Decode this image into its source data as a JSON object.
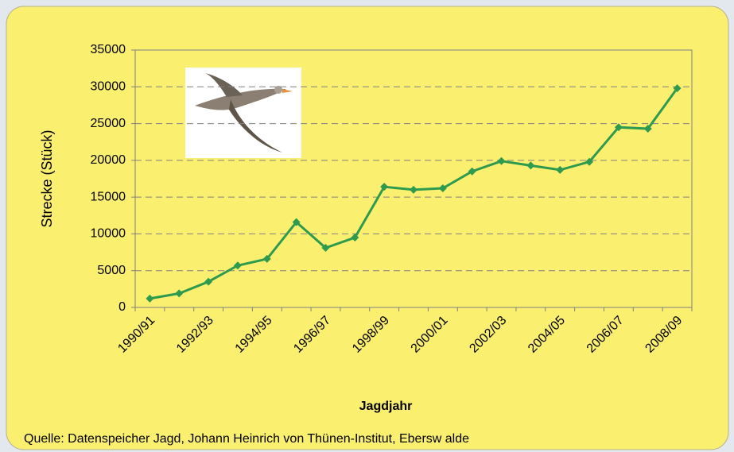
{
  "chart_data": {
    "type": "line",
    "ylabel": "Strecke (Stück)",
    "xlabel": "Jagdjahr",
    "source": "Quelle: Datenspeicher Jagd, Johann Heinrich von Thünen-Institut, Ebersw alde",
    "categories": [
      "1990/91",
      null,
      "1992/93",
      null,
      "1994/95",
      null,
      "1996/97",
      null,
      "1998/99",
      null,
      "2000/01",
      null,
      "2002/03",
      null,
      "2004/05",
      null,
      "2006/07",
      null,
      "2008/09"
    ],
    "values": [
      1200,
      1900,
      3500,
      5700,
      6600,
      11600,
      8100,
      9500,
      16400,
      16000,
      16200,
      18500,
      19900,
      19300,
      18700,
      19800,
      24500,
      24300,
      29800
    ],
    "color": "#2e9a4e",
    "ylim": [
      0,
      35000
    ],
    "yticks": [
      0,
      5000,
      10000,
      15000,
      20000,
      25000,
      30000,
      35000
    ],
    "grid": true
  }
}
